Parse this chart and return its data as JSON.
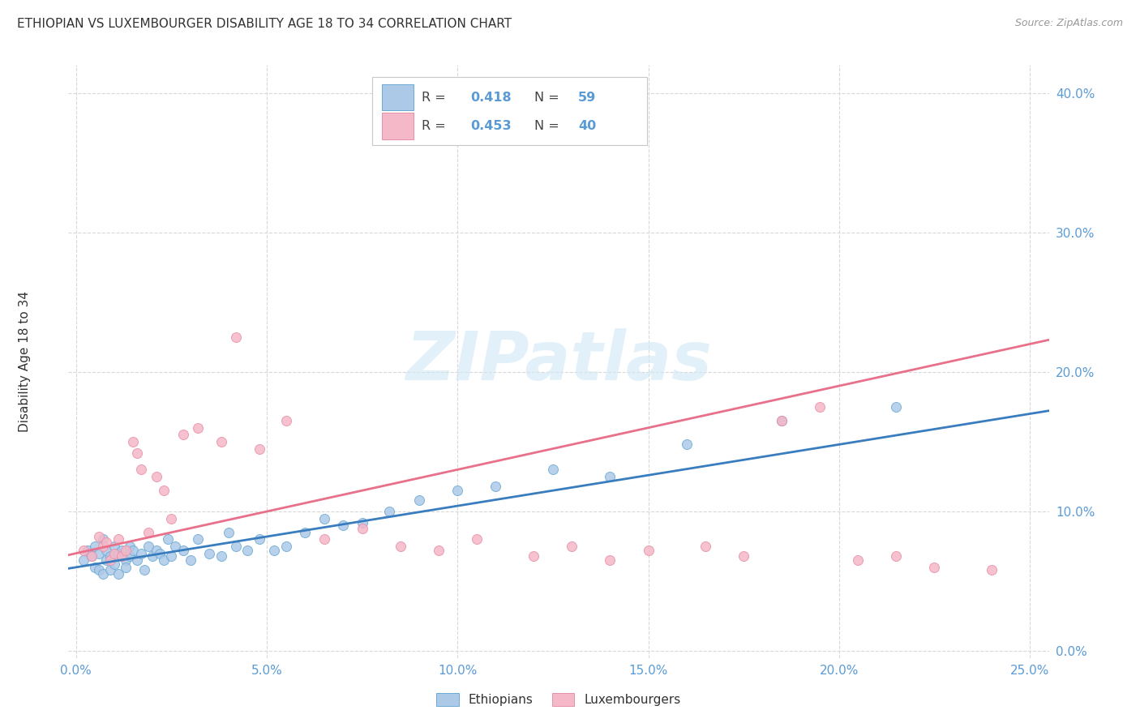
{
  "title": "ETHIOPIAN VS LUXEMBOURGER DISABILITY AGE 18 TO 34 CORRELATION CHART",
  "source": "Source: ZipAtlas.com",
  "ylabel": "Disability Age 18 to 34",
  "xlabel_ticks": [
    "0.0%",
    "5.0%",
    "10.0%",
    "15.0%",
    "20.0%",
    "25.0%"
  ],
  "xlabel_vals": [
    0.0,
    0.05,
    0.1,
    0.15,
    0.2,
    0.25
  ],
  "ylabel_ticks": [
    "0.0%",
    "10.0%",
    "20.0%",
    "30.0%",
    "40.0%"
  ],
  "ylabel_vals": [
    0.0,
    0.1,
    0.2,
    0.3,
    0.4
  ],
  "xlim": [
    -0.002,
    0.255
  ],
  "ylim": [
    -0.005,
    0.42
  ],
  "R_ethiopian": 0.418,
  "N_ethiopian": 59,
  "R_luxembourger": 0.453,
  "N_luxembourger": 40,
  "color_ethiopian_fill": "#adc9e8",
  "color_ethiopian_edge": "#6aaad4",
  "color_ethiopian_line": "#3a7dbf",
  "color_luxembourger_fill": "#f5b8c8",
  "color_luxembourger_edge": "#e890a8",
  "color_luxembourger_line": "#e8708a",
  "color_axis_labels": "#5b9bd5",
  "color_text_dark": "#333333",
  "color_source": "#999999",
  "color_grid": "#d8d8d8",
  "watermark_text": "ZIPatlas",
  "watermark_color": "#d0e8f5",
  "ethiopian_x": [
    0.002,
    0.003,
    0.004,
    0.005,
    0.005,
    0.006,
    0.006,
    0.007,
    0.007,
    0.008,
    0.008,
    0.009,
    0.009,
    0.01,
    0.01,
    0.011,
    0.011,
    0.012,
    0.012,
    0.013,
    0.013,
    0.014,
    0.014,
    0.015,
    0.016,
    0.017,
    0.018,
    0.019,
    0.02,
    0.021,
    0.022,
    0.023,
    0.024,
    0.025,
    0.026,
    0.028,
    0.03,
    0.032,
    0.035,
    0.038,
    0.04,
    0.042,
    0.045,
    0.048,
    0.052,
    0.055,
    0.06,
    0.065,
    0.07,
    0.075,
    0.082,
    0.09,
    0.1,
    0.11,
    0.125,
    0.14,
    0.16,
    0.185,
    0.215
  ],
  "ethiopian_y": [
    0.065,
    0.072,
    0.068,
    0.075,
    0.06,
    0.07,
    0.058,
    0.08,
    0.055,
    0.072,
    0.065,
    0.068,
    0.058,
    0.075,
    0.062,
    0.07,
    0.055,
    0.068,
    0.072,
    0.065,
    0.06,
    0.075,
    0.068,
    0.072,
    0.065,
    0.07,
    0.058,
    0.075,
    0.068,
    0.072,
    0.07,
    0.065,
    0.08,
    0.068,
    0.075,
    0.072,
    0.065,
    0.08,
    0.07,
    0.068,
    0.085,
    0.075,
    0.072,
    0.08,
    0.072,
    0.075,
    0.085,
    0.095,
    0.09,
    0.092,
    0.1,
    0.108,
    0.115,
    0.118,
    0.13,
    0.125,
    0.148,
    0.165,
    0.175
  ],
  "luxembourger_x": [
    0.002,
    0.004,
    0.006,
    0.007,
    0.008,
    0.009,
    0.01,
    0.011,
    0.012,
    0.013,
    0.015,
    0.016,
    0.017,
    0.019,
    0.021,
    0.023,
    0.025,
    0.028,
    0.032,
    0.038,
    0.042,
    0.048,
    0.055,
    0.065,
    0.075,
    0.085,
    0.095,
    0.105,
    0.12,
    0.13,
    0.14,
    0.15,
    0.165,
    0.175,
    0.185,
    0.195,
    0.205,
    0.215,
    0.225,
    0.24
  ],
  "luxembourger_y": [
    0.072,
    0.068,
    0.082,
    0.075,
    0.078,
    0.065,
    0.07,
    0.08,
    0.068,
    0.072,
    0.15,
    0.142,
    0.13,
    0.085,
    0.125,
    0.115,
    0.095,
    0.155,
    0.16,
    0.15,
    0.225,
    0.145,
    0.165,
    0.08,
    0.088,
    0.075,
    0.072,
    0.08,
    0.068,
    0.075,
    0.065,
    0.072,
    0.075,
    0.068,
    0.165,
    0.175,
    0.065,
    0.068,
    0.06,
    0.058
  ]
}
